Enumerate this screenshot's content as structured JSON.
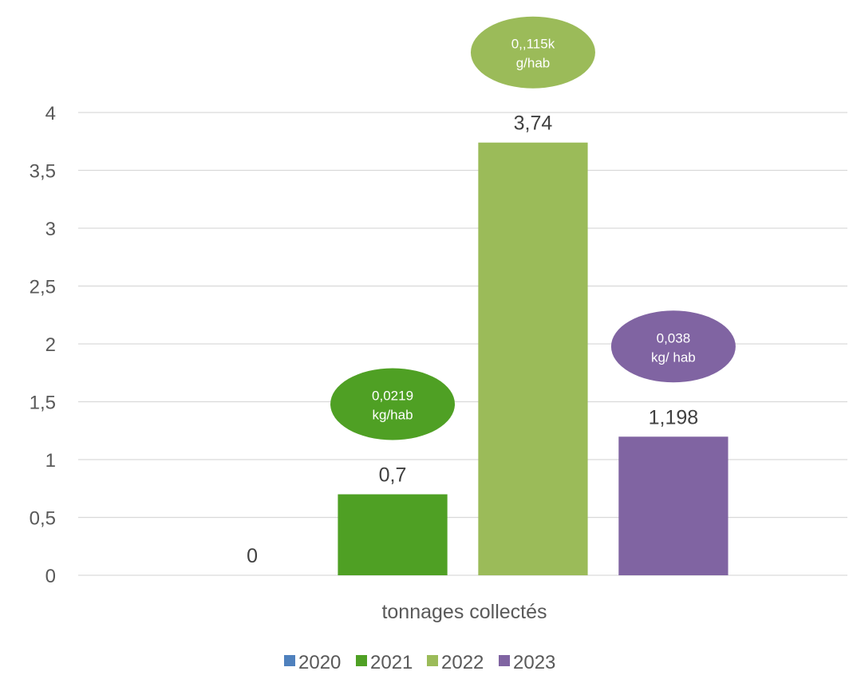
{
  "chart_data": {
    "type": "bar",
    "title": "",
    "xlabel": "",
    "ylabel": "",
    "categories": [
      "tonnages  collectés"
    ],
    "series": [
      {
        "name": "2020",
        "values": [
          0
        ],
        "label": "0",
        "color": "#4f81bd",
        "bubble": null
      },
      {
        "name": "2021",
        "values": [
          0.7
        ],
        "label": "0,7",
        "color": "#4fa024",
        "bubble": [
          "0,0219",
          "kg/hab"
        ]
      },
      {
        "name": "2022",
        "values": [
          3.74
        ],
        "label": "3,74",
        "color": "#9bbb59",
        "bubble": [
          "0,,115k",
          "g/hab"
        ]
      },
      {
        "name": "2023",
        "values": [
          1.198
        ],
        "label": "1,198",
        "color": "#8064a2",
        "bubble": [
          "0,038",
          "kg/ hab"
        ]
      }
    ],
    "ylim": [
      0,
      4
    ],
    "yticks": [
      {
        "value": 0,
        "label": "0"
      },
      {
        "value": 0.5,
        "label": "0,5"
      },
      {
        "value": 1,
        "label": "1"
      },
      {
        "value": 1.5,
        "label": "1,5"
      },
      {
        "value": 2,
        "label": "2"
      },
      {
        "value": 2.5,
        "label": "2,5"
      },
      {
        "value": 3,
        "label": "3"
      },
      {
        "value": 3.5,
        "label": "3,5"
      },
      {
        "value": 4,
        "label": "4"
      }
    ],
    "grid": true,
    "legend_position": "bottom"
  }
}
